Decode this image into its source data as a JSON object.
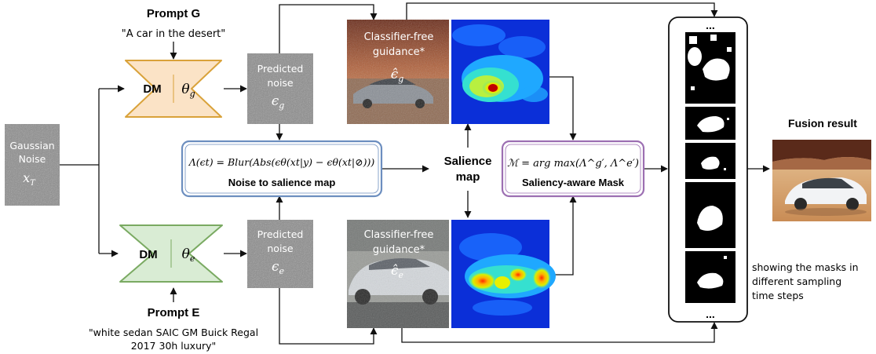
{
  "prompt_g": {
    "title": "Prompt G",
    "text": "\"A car in the desert\""
  },
  "prompt_e": {
    "title": "Prompt E",
    "text_line1": "\"white sedan SAIC GM Buick Regal",
    "text_line2": "2017 30h luxury\""
  },
  "gaussian_noise": {
    "label_line1": "Gaussian",
    "label_line2": "Noise",
    "symbol": "x",
    "symbol_sub": "T"
  },
  "dm_top": {
    "label": "DM",
    "theta": "θ",
    "theta_sub": "g"
  },
  "dm_bottom": {
    "label": "DM",
    "theta": "θ",
    "theta_sub": "e"
  },
  "predicted_noise_top": {
    "line1": "Predicted",
    "line2": "noise",
    "symbol": "ϵ",
    "symbol_sub": "g"
  },
  "predicted_noise_bottom": {
    "line1": "Predicted",
    "line2": "noise",
    "symbol": "ϵ",
    "symbol_sub": "e"
  },
  "noise_to_salience": {
    "formula": "Λ(ϵt) = Blur(Abs(ϵθ(xt|y) − ϵθ(xt|⊘)))",
    "label": "Noise to salience map"
  },
  "cfg_top": {
    "line1": "Classifier-free",
    "line2": "guidance*",
    "symbol": "ϵ̂",
    "symbol_sub": "g"
  },
  "cfg_bottom": {
    "line1": "Classifier-free",
    "line2": "guidance*",
    "symbol": "ϵ̂",
    "symbol_sub": "e"
  },
  "salience_map": {
    "line1": "Salience",
    "line2": "map"
  },
  "saliency_mask": {
    "formula": "ℳ = arg max(Λ^g′, Λ^e′)",
    "label": "Saliency-aware Mask"
  },
  "mask_column": {
    "ellipsis_top": "...",
    "ellipsis_bottom": "...",
    "caption_line1": "showing the masks in",
    "caption_line2": "different sampling",
    "caption_line3": "time steps"
  },
  "fusion": {
    "title": "Fusion result"
  },
  "colors": {
    "dm_top_fill": "#fbe3c6",
    "dm_top_stroke": "#d9a23a",
    "dm_bottom_fill": "#d9ecd4",
    "dm_bottom_stroke": "#7aaa62",
    "noise_box_stroke": "#6c8ebf",
    "mask_box_stroke": "#9c6fb2",
    "noise_gray": "#8a8a8a"
  }
}
